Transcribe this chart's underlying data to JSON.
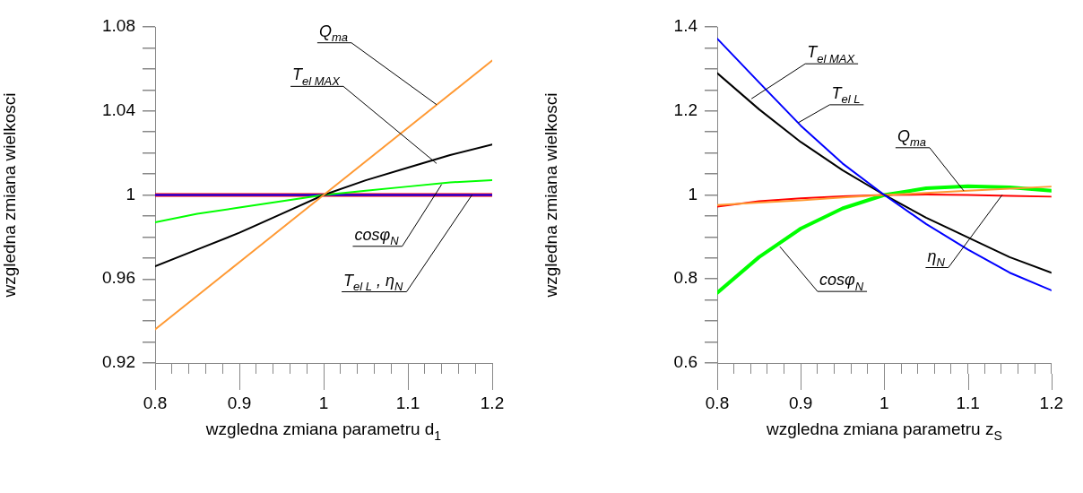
{
  "chart_data": [
    {
      "type": "line",
      "xlabel": "wzgledna zmiana parametru d$_{1}$",
      "ylabel": "wzgledna zmiana wielkosci",
      "x": [
        0.8,
        0.85,
        0.9,
        0.95,
        1.0,
        1.05,
        1.1,
        1.15,
        1.2
      ],
      "series": [
        {
          "color": "#ff0000",
          "values": [
            1,
            1,
            1,
            1,
            1,
            1,
            1,
            1,
            1
          ]
        },
        {
          "color": "#0000ff",
          "values": [
            1,
            1,
            1,
            1,
            1,
            1,
            1,
            1,
            1
          ]
        },
        {
          "color": "#00ff00",
          "values": [
            0.987,
            0.991,
            0.994,
            0.997,
            1.0,
            1.002,
            1.004,
            1.006,
            1.007
          ]
        },
        {
          "color": "#000000",
          "values": [
            0.966,
            0.974,
            0.982,
            0.991,
            1.0,
            1.007,
            1.013,
            1.019,
            1.024
          ]
        },
        {
          "color": "#ff9933",
          "values": [
            0.936,
            0.952,
            0.968,
            0.984,
            1.0,
            1.016,
            1.032,
            1.048,
            1.064
          ]
        }
      ],
      "annotations": [
        {
          "text": "Q$_{ma}$",
          "x": 1.134,
          "y": 1.043
        },
        {
          "text": "T$_{el MAX}$",
          "x": 1.134,
          "y": 1.015
        },
        {
          "text": "cosφ$_{N}$",
          "x": 1.14,
          "y": 1.005
        },
        {
          "text": "T$_{el L}$ , η$_{N}$",
          "x": 1.176,
          "y": 1.0
        }
      ],
      "xlim": [
        0.8,
        1.2
      ],
      "xticks": [
        0.8,
        {
          "value": 0.82,
          "label": null
        },
        {
          "value": 0.84,
          "label": null
        },
        {
          "value": 0.86,
          "label": null
        },
        {
          "value": 0.88,
          "label": null
        },
        0.9,
        {
          "value": 0.92,
          "label": null
        },
        {
          "value": 0.94,
          "label": null
        },
        {
          "value": 0.96,
          "label": null
        },
        {
          "value": 0.98,
          "label": null
        },
        1,
        {
          "value": 1.02,
          "label": null
        },
        {
          "value": 1.04,
          "label": null
        },
        {
          "value": 1.06,
          "label": null
        },
        {
          "value": 1.08,
          "label": null
        },
        1.1,
        {
          "value": 1.12,
          "label": null
        },
        {
          "value": 1.14,
          "label": null
        },
        {
          "value": 1.16,
          "label": null
        },
        {
          "value": 1.18,
          "label": null
        },
        1.2
      ],
      "ylim": [
        0.92,
        1.08
      ],
      "yticks": [
        0.92,
        {
          "value": 0.93,
          "label": null
        },
        {
          "value": 0.94,
          "label": null
        },
        {
          "value": 0.95,
          "label": null
        },
        0.96,
        {
          "value": 0.97,
          "label": null
        },
        {
          "value": 0.98,
          "label": null
        },
        {
          "value": 0.99,
          "label": null
        },
        1,
        {
          "value": 1.01,
          "label": null
        },
        {
          "value": 1.02,
          "label": null
        },
        {
          "value": 1.03,
          "label": null
        },
        1.04,
        {
          "value": 1.05,
          "label": null
        },
        {
          "value": 1.06,
          "label": null
        },
        {
          "value": 1.07,
          "label": null
        },
        1.08
      ],
      "grid": false,
      "legend": false,
      "marker": "none",
      "line_style": "solid"
    },
    {
      "type": "line",
      "xlabel": "wzgledna zmiana parametru z$_{S}$",
      "ylabel": "wzgledna zmiana wielkosci",
      "x": [
        0.8,
        0.85,
        0.9,
        0.95,
        1.0,
        1.05,
        1.1,
        1.15,
        1.2
      ],
      "series": [
        {
          "color": "#00ff00",
          "values": [
            0.767,
            0.852,
            0.92,
            0.968,
            1.0,
            1.016,
            1.021,
            1.018,
            1.01
          ]
        },
        {
          "color": "#ff0000",
          "values": [
            0.972,
            0.985,
            0.992,
            0.997,
            1.0,
            1.001,
            1.0,
            0.998,
            0.996
          ]
        },
        {
          "color": "#ff9933",
          "values": [
            0.976,
            0.982,
            0.987,
            0.994,
            1.0,
            1.005,
            1.01,
            1.015,
            1.02
          ]
        },
        {
          "color": "#000000",
          "values": [
            1.29,
            1.204,
            1.126,
            1.059,
            1.0,
            0.946,
            0.899,
            0.852,
            0.815
          ]
        },
        {
          "color": "#0000ff",
          "values": [
            1.372,
            1.268,
            1.165,
            1.075,
            1.0,
            0.931,
            0.87,
            0.815,
            0.773
          ]
        }
      ],
      "annotations": [
        {
          "text": "T$_{el MAX}$",
          "x": 0.841,
          "y": 1.229
        },
        {
          "text": "T$_{el L}$",
          "x": 0.897,
          "y": 1.172
        },
        {
          "text": "Q$_{ma}$",
          "x": 1.095,
          "y": 1.01
        },
        {
          "text": "cosφ$_{N}$",
          "x": 0.875,
          "y": 0.877
        },
        {
          "text": "η$_{N}$",
          "x": 1.141,
          "y": 1.0
        }
      ],
      "xlim": [
        0.8,
        1.2
      ],
      "xticks": [
        0.8,
        {
          "value": 0.82,
          "label": null
        },
        {
          "value": 0.84,
          "label": null
        },
        {
          "value": 0.86,
          "label": null
        },
        {
          "value": 0.88,
          "label": null
        },
        0.9,
        {
          "value": 0.92,
          "label": null
        },
        {
          "value": 0.94,
          "label": null
        },
        {
          "value": 0.96,
          "label": null
        },
        {
          "value": 0.98,
          "label": null
        },
        1,
        {
          "value": 1.02,
          "label": null
        },
        {
          "value": 1.04,
          "label": null
        },
        {
          "value": 1.06,
          "label": null
        },
        {
          "value": 1.08,
          "label": null
        },
        1.1,
        {
          "value": 1.12,
          "label": null
        },
        {
          "value": 1.14,
          "label": null
        },
        {
          "value": 1.16,
          "label": null
        },
        {
          "value": 1.18,
          "label": null
        },
        1.2
      ],
      "ylim": [
        0.6,
        1.4
      ],
      "yticks": [
        0.6,
        {
          "value": 0.65,
          "label": null
        },
        {
          "value": 0.7,
          "label": null
        },
        {
          "value": 0.75,
          "label": null
        },
        0.8,
        {
          "value": 0.85,
          "label": null
        },
        {
          "value": 0.9,
          "label": null
        },
        {
          "value": 0.95,
          "label": null
        },
        1,
        {
          "value": 1.05,
          "label": null
        },
        {
          "value": 1.1,
          "label": null
        },
        {
          "value": 1.15,
          "label": null
        },
        1.2,
        {
          "value": 1.25,
          "label": null
        },
        {
          "value": 1.3,
          "label": null
        },
        {
          "value": 1.35,
          "label": null
        },
        1.4
      ],
      "grid": false,
      "legend": false,
      "marker": "none",
      "line_style": "solid"
    }
  ]
}
